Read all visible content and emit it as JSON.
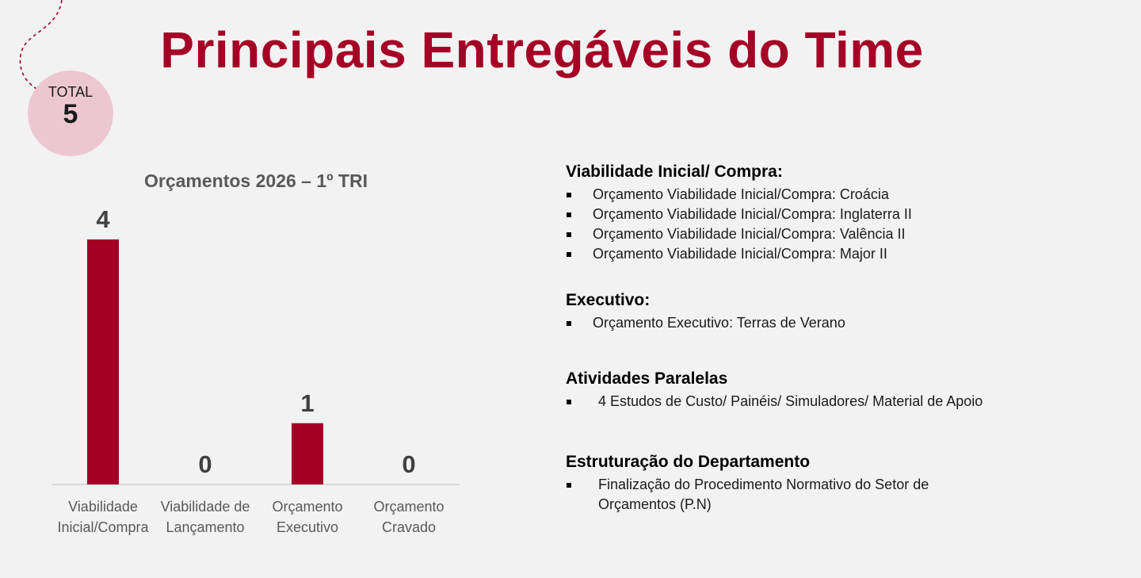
{
  "page": {
    "title": "Principais Entregáveis do Time",
    "accent_color": "#a50025",
    "badge_color": "#ecc7d1",
    "total_label": "TOTAL",
    "total_value": "5"
  },
  "chart_data": {
    "type": "bar",
    "title": "Orçamentos 2026 – 1º TRI",
    "categories": [
      [
        "Viabilidade",
        "Inicial/Compra"
      ],
      [
        "Viabilidade de",
        "Lançamento"
      ],
      [
        "Orçamento",
        "Executivo"
      ],
      [
        "Orçamento",
        "Cravado"
      ]
    ],
    "values": [
      4,
      0,
      1,
      0
    ],
    "ylim": [
      0,
      4
    ],
    "grid": false,
    "bar_color": "#a50025"
  },
  "details": {
    "sections": [
      {
        "title": "Viabilidade Inicial/ Compra:",
        "items": [
          "Orçamento Viabilidade Inicial/Compra:  Croácia",
          "Orçamento Viabilidade Inicial/Compra:  Inglaterra II",
          "Orçamento Viabilidade Inicial/Compra:  Valência II",
          "Orçamento Viabilidade Inicial/Compra:  Major II"
        ]
      },
      {
        "title": "Executivo:",
        "items": [
          "Orçamento Executivo: Terras de Verano"
        ]
      },
      {
        "title": "Atividades Paralelas",
        "items": [
          "4 Estudos de Custo/ Painéis/ Simuladores/ Material de Apoio"
        ]
      },
      {
        "title": "Estruturação do Departamento",
        "items": [
          "Finalização do Procedimento Normativo do Setor de",
          "Orçamentos (P.N)"
        ]
      }
    ]
  }
}
